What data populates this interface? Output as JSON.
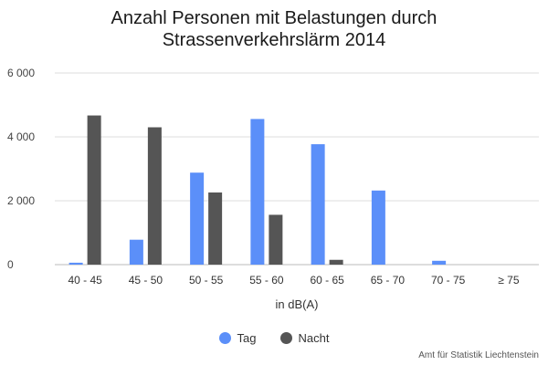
{
  "chart_data": {
    "type": "bar",
    "title_line1": "Anzahl Personen mit Belastungen durch",
    "title_line2": "Strassenverkehrslärm 2014",
    "xlabel": "in dB(A)",
    "ylabel": "",
    "categories": [
      "40 - 45",
      "45 - 50",
      "50 - 55",
      "55 - 60",
      "60 - 65",
      "65 - 70",
      "70 - 75",
      "≥ 75"
    ],
    "series": [
      {
        "name": "Tag",
        "color": "#5b8ff9",
        "values": [
          60,
          780,
          2880,
          4560,
          3770,
          2320,
          120,
          0
        ]
      },
      {
        "name": "Nacht",
        "color": "#555555",
        "values": [
          4670,
          4300,
          2260,
          1560,
          150,
          0,
          0,
          0
        ]
      }
    ],
    "ylim": [
      0,
      6000
    ],
    "yticks": [
      0,
      2000,
      4000,
      6000
    ],
    "ytick_labels": [
      "0",
      "2 000",
      "4 000",
      "6 000"
    ],
    "grid": true,
    "legend_position": "bottom"
  },
  "source": "Amt für Statistik Liechtenstein"
}
